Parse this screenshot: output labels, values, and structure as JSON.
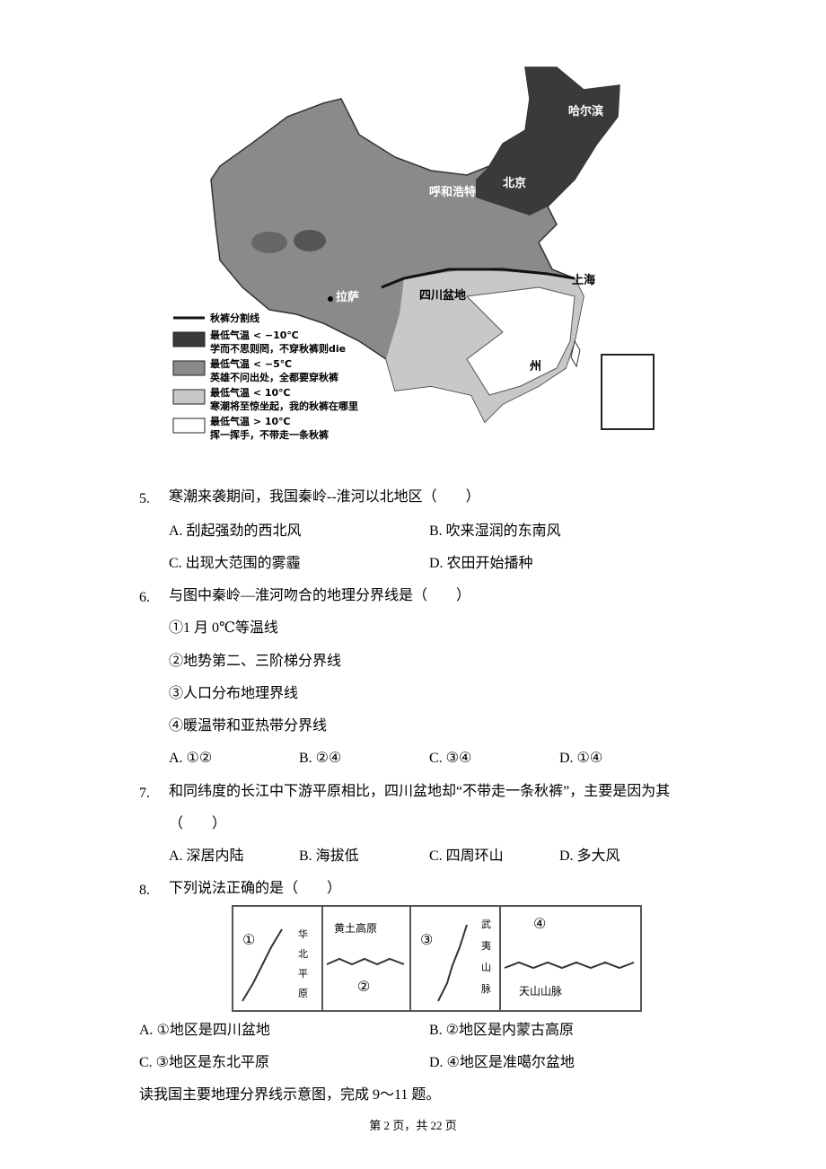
{
  "map": {
    "labels": [
      "哈尔滨",
      "呼和浩特",
      "北京",
      "上海",
      "拉萨",
      "四川盆地",
      "州"
    ],
    "legend": [
      {
        "label": "秋裤分割线"
      },
      {
        "label": "最低气温 < −10℃",
        "caption": "学而不思则罔，不穿秋裤则die"
      },
      {
        "label": "最低气温 < −5℃",
        "caption": "英雄不问出处，全都要穿秋裤"
      },
      {
        "label": "最低气温 < 10℃",
        "caption": "寒潮将至惊坐起，我的秋裤在哪里"
      },
      {
        "label": "最低气温 > 10℃",
        "caption": "挥一挥手，不带走一条秋裤"
      }
    ]
  },
  "questions": [
    {
      "number": "5.",
      "text": "寒潮来袭期间，我国秦岭--淮河以北地区（　　）",
      "options": [
        "A. 刮起强劲的西北风",
        "B. 吹来湿润的东南风",
        "C. 出现大范围的雾霾",
        "D. 农田开始播种"
      ]
    },
    {
      "number": "6.",
      "text": "与图中秦岭—淮河吻合的地理分界线是（　　）",
      "statements": [
        "①1 月 0℃等温线",
        "②地势第二、三阶梯分界线",
        "③人口分布地理界线",
        "④暖温带和亚热带分界线"
      ],
      "options": [
        "A. ①②",
        "B. ②④",
        "C. ③④",
        "D. ①④"
      ]
    },
    {
      "number": "7.",
      "text": "和同纬度的长江中下游平原相比，四川盆地却“不带走一条秋裤”，主要是因为其（　　）",
      "options": [
        "A. 深居内陆",
        "B. 海拔低",
        "C. 四周环山",
        "D. 多大风"
      ]
    },
    {
      "number": "8.",
      "text": "下列说法正确的是（　　）",
      "figure": {
        "panels": [
          {
            "mark": "①",
            "label": "华北平原"
          },
          {
            "mark": "②",
            "label": "黄土高原"
          },
          {
            "mark": "③",
            "label": "武夷山脉"
          },
          {
            "mark": "④",
            "label": "天山山脉"
          }
        ]
      },
      "options": [
        "A. ①地区是四川盆地",
        "B. ②地区是内蒙古高原",
        "C. ③地区是东北平原",
        "D. ④地区是准噶尔盆地"
      ]
    }
  ],
  "instruction": "读我国主要地理分界线示意图，完成 9～11 题。",
  "footer": "第 2 页，共 22 页"
}
